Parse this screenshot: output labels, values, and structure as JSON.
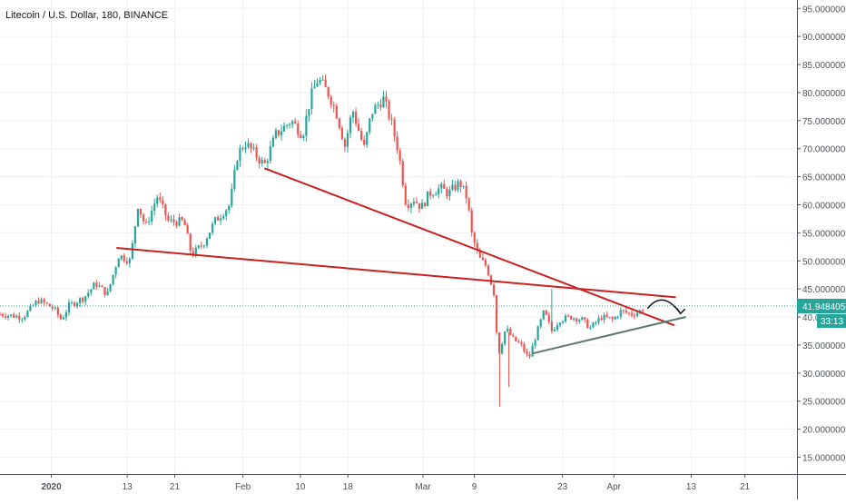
{
  "header": {
    "title": "Litecoin / U.S. Dollar, 180, BINANCE"
  },
  "chart_data": {
    "type": "candlestick",
    "title": "Litecoin / U.S. Dollar, 180, BINANCE",
    "y_scale": "linear",
    "ylim": [
      12.0,
      96.5
    ],
    "xlim": [
      0.0,
      104.0
    ],
    "grid": true,
    "y_ticks": [
      {
        "value": 15,
        "label": "15.000000"
      },
      {
        "value": 20,
        "label": "20.000000"
      },
      {
        "value": 25,
        "label": "25.000000"
      },
      {
        "value": 30,
        "label": "30.000000"
      },
      {
        "value": 35,
        "label": "35.000000"
      },
      {
        "value": 40,
        "label": "40.000000"
      },
      {
        "value": 45,
        "label": "45.000000"
      },
      {
        "value": 50,
        "label": "50.000000"
      },
      {
        "value": 55,
        "label": "55.000000"
      },
      {
        "value": 60,
        "label": "60.000000"
      },
      {
        "value": 65,
        "label": "65.000000"
      },
      {
        "value": 70,
        "label": "70.000000"
      },
      {
        "value": 75,
        "label": "75.000000"
      },
      {
        "value": 80,
        "label": "80.000000"
      },
      {
        "value": 85,
        "label": "85.000000"
      },
      {
        "value": 90,
        "label": "90.000000"
      },
      {
        "value": 95,
        "label": "95.000000"
      }
    ],
    "x_ticks": [
      {
        "value": 6.7,
        "label": "2020",
        "bold": true
      },
      {
        "value": 16.6,
        "label": "13"
      },
      {
        "value": 22.8,
        "label": "21"
      },
      {
        "value": 31.7,
        "label": "Feb"
      },
      {
        "value": 39.2,
        "label": "10"
      },
      {
        "value": 45.4,
        "label": "18"
      },
      {
        "value": 55.2,
        "label": "Mar"
      },
      {
        "value": 61.9,
        "label": "9"
      },
      {
        "value": 73.4,
        "label": "23"
      },
      {
        "value": 80.1,
        "label": "Apr"
      },
      {
        "value": 90.2,
        "label": "13"
      },
      {
        "value": 97.2,
        "label": "21"
      }
    ],
    "vertical_grid_x": [
      6.7,
      16.6,
      22.8,
      31.7,
      39.2,
      45.4,
      55.2,
      61.9,
      73.4,
      80.1,
      90.2,
      97.2
    ],
    "price_path": [
      [
        0,
        40.5
      ],
      [
        3,
        40
      ],
      [
        5,
        43
      ],
      [
        7,
        41.5
      ],
      [
        8,
        39.5
      ],
      [
        9,
        42
      ],
      [
        11,
        43.5
      ],
      [
        12.5,
        46
      ],
      [
        14,
        44
      ],
      [
        15.5,
        51
      ],
      [
        17,
        50
      ],
      [
        18,
        60
      ],
      [
        19,
        56
      ],
      [
        20.5,
        61.5
      ],
      [
        22,
        57
      ],
      [
        24,
        57
      ],
      [
        25,
        51
      ],
      [
        26.5,
        53
      ],
      [
        28,
        57
      ],
      [
        30,
        60
      ],
      [
        31,
        69
      ],
      [
        32,
        71
      ],
      [
        33,
        69.5
      ],
      [
        34.5,
        67
      ],
      [
        36,
        72.5
      ],
      [
        38,
        75
      ],
      [
        39.5,
        72.5
      ],
      [
        40.5,
        79
      ],
      [
        41.5,
        82.5
      ],
      [
        43,
        79.5
      ],
      [
        44,
        76
      ],
      [
        45,
        70.5
      ],
      [
        46,
        77
      ],
      [
        47.5,
        70
      ],
      [
        48.5,
        76.5
      ],
      [
        50,
        79
      ],
      [
        51,
        75
      ],
      [
        52,
        69.5
      ],
      [
        53,
        60
      ],
      [
        54,
        61
      ],
      [
        55,
        59.5
      ],
      [
        56,
        62
      ],
      [
        57.5,
        63
      ],
      [
        58.5,
        62
      ],
      [
        60,
        64
      ],
      [
        61,
        61
      ],
      [
        61.5,
        55
      ],
      [
        62.5,
        50.5
      ],
      [
        63.5,
        49
      ],
      [
        64.5,
        44
      ],
      [
        65,
        33
      ],
      [
        66,
        38
      ],
      [
        67,
        36
      ],
      [
        68,
        35
      ],
      [
        69,
        32.5
      ],
      [
        70,
        37
      ],
      [
        71,
        41
      ],
      [
        72,
        37.5
      ],
      [
        73,
        39.5
      ],
      [
        74.5,
        40
      ],
      [
        76,
        39.5
      ],
      [
        77,
        38
      ],
      [
        78.5,
        40
      ],
      [
        80,
        39.5
      ],
      [
        81,
        41
      ],
      [
        82.5,
        40.5
      ],
      [
        83.5,
        41
      ],
      [
        84.2,
        41.9
      ]
    ],
    "trendlines": [
      {
        "color": "#cc1f1f",
        "from": [
          34.5,
          66.5
        ],
        "to": [
          88,
          38.5
        ]
      },
      {
        "color": "#cc1f1f",
        "from": [
          15.2,
          52.3
        ],
        "to": [
          88.2,
          43.5
        ]
      },
      {
        "color": "#5d7a6a",
        "from": [
          69.5,
          33.5
        ],
        "to": [
          89.5,
          40
        ]
      }
    ],
    "projection_arrow": {
      "color": "#131722",
      "from": [
        84.5,
        41.5
      ],
      "peak": [
        86.5,
        43
      ],
      "to": [
        88.8,
        40.6
      ]
    },
    "current_price": {
      "value": 41.948405,
      "label": "41.948405",
      "countdown": "33:13",
      "color": "#26a69a"
    },
    "colors": {
      "up": "#26a69a",
      "down": "#ef5350",
      "grid": "#edf0f4",
      "axis_text": "#50535e"
    }
  }
}
